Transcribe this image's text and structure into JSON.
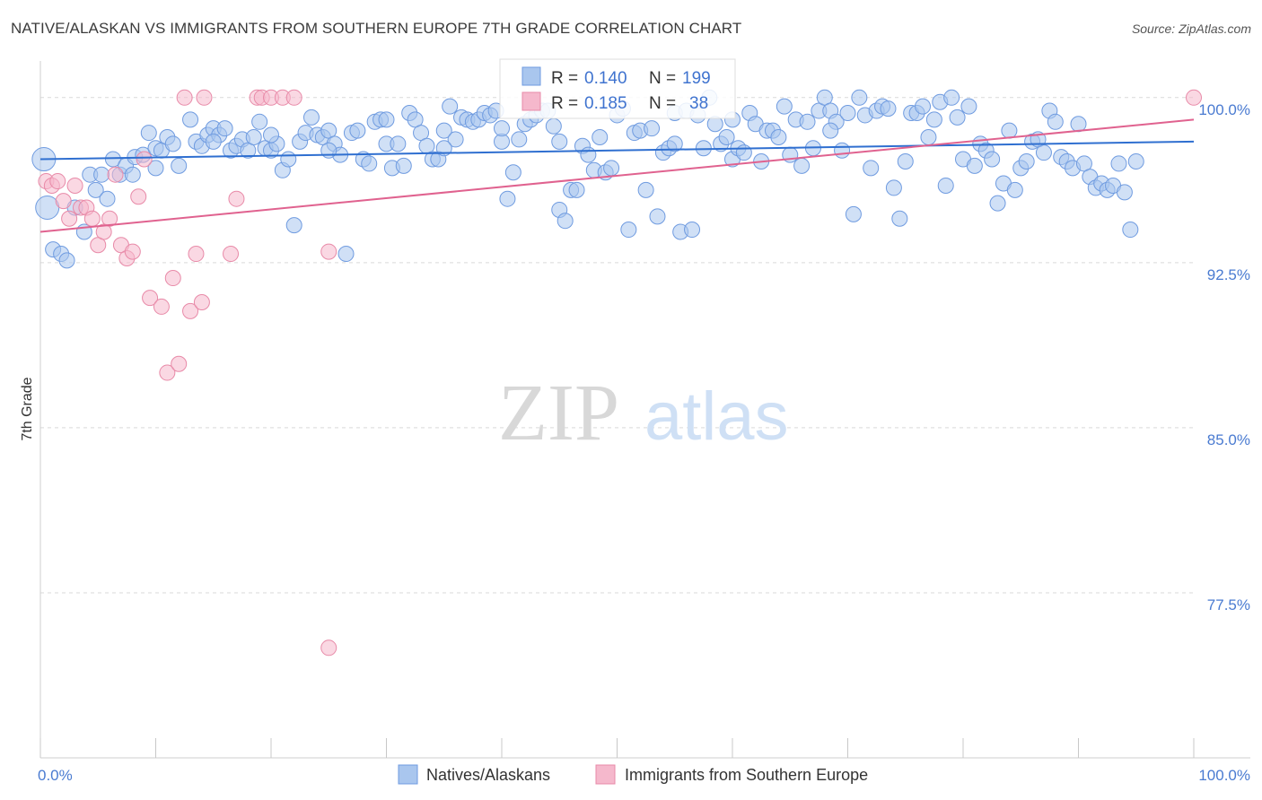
{
  "title": "NATIVE/ALASKAN VS IMMIGRANTS FROM SOUTHERN EUROPE 7TH GRADE CORRELATION CHART",
  "source": "Source: ZipAtlas.com",
  "watermark": {
    "zip": "ZIP",
    "atlas": "atlas"
  },
  "colors": {
    "blue_fill": "#a9c6ee",
    "blue_stroke": "#6f9be0",
    "blue_line": "#2f6fd0",
    "pink_fill": "#f5b8cc",
    "pink_stroke": "#e88aa8",
    "pink_line": "#e0628f",
    "axis_label": "#4a7bd1",
    "grid": "#d9d9d9"
  },
  "legend": {
    "items": [
      {
        "label": "Natives/Alaskans",
        "color": "#a9c6ee"
      },
      {
        "label": "Immigrants from Southern Europe",
        "color": "#f5b8cc"
      }
    ]
  },
  "stats": [
    {
      "r_label": "R = ",
      "r": "0.140",
      "n_label": "N = ",
      "n": "199",
      "color": "#a9c6ee"
    },
    {
      "r_label": "R = ",
      "r": "0.185",
      "n_label": "N = ",
      "n": "38",
      "color": "#f5b8cc"
    }
  ],
  "chart_data": {
    "type": "scatter",
    "ylabel": "7th Grade",
    "xlim": [
      0,
      100
    ],
    "ylim": [
      70.0,
      101.5
    ],
    "x_tick_labels": [
      "0.0%",
      "100.0%"
    ],
    "y_ticks": [
      {
        "value": 100.0,
        "label": "100.0%"
      },
      {
        "value": 92.5,
        "label": "92.5%"
      },
      {
        "value": 85.0,
        "label": "85.0%"
      },
      {
        "value": 77.5,
        "label": "77.5%"
      }
    ],
    "grid": true,
    "legend_position": "bottom",
    "series": [
      {
        "name": "Natives/Alaskans",
        "trend": {
          "x": [
            0,
            100
          ],
          "y": [
            97.2,
            98.0
          ]
        },
        "points": [
          [
            0.3,
            97.2
          ],
          [
            0.6,
            95.0
          ],
          [
            1.1,
            93.1
          ],
          [
            1.8,
            92.9
          ],
          [
            2.3,
            92.6
          ],
          [
            3.0,
            95.0
          ],
          [
            3.8,
            93.9
          ],
          [
            4.3,
            96.5
          ],
          [
            4.8,
            95.8
          ],
          [
            5.3,
            96.5
          ],
          [
            5.8,
            95.4
          ],
          [
            6.3,
            97.2
          ],
          [
            6.9,
            96.5
          ],
          [
            7.4,
            96.9
          ],
          [
            8.2,
            97.3
          ],
          [
            8.9,
            97.4
          ],
          [
            9.4,
            98.4
          ],
          [
            10.0,
            97.7
          ],
          [
            10.5,
            97.6
          ],
          [
            11.0,
            98.2
          ],
          [
            11.5,
            97.9
          ],
          [
            12.0,
            96.9
          ],
          [
            13.0,
            99.0
          ],
          [
            13.5,
            98.0
          ],
          [
            14.0,
            97.8
          ],
          [
            14.5,
            98.3
          ],
          [
            15.0,
            98.6
          ],
          [
            15.5,
            98.3
          ],
          [
            16.0,
            98.6
          ],
          [
            16.5,
            97.6
          ],
          [
            17.0,
            97.8
          ],
          [
            17.5,
            98.1
          ],
          [
            18.0,
            97.6
          ],
          [
            18.5,
            98.2
          ],
          [
            19.0,
            98.9
          ],
          [
            19.5,
            97.7
          ],
          [
            20.0,
            97.6
          ],
          [
            20.5,
            97.9
          ],
          [
            21.0,
            96.7
          ],
          [
            21.5,
            97.2
          ],
          [
            22.0,
            94.2
          ],
          [
            22.5,
            98.0
          ],
          [
            23.0,
            98.4
          ],
          [
            23.5,
            99.1
          ],
          [
            24.0,
            98.3
          ],
          [
            24.5,
            98.2
          ],
          [
            25.0,
            98.5
          ],
          [
            25.5,
            97.9
          ],
          [
            26.0,
            97.4
          ],
          [
            26.5,
            92.9
          ],
          [
            27.0,
            98.4
          ],
          [
            27.5,
            98.5
          ],
          [
            28.0,
            97.2
          ],
          [
            28.5,
            97.0
          ],
          [
            29.0,
            98.9
          ],
          [
            29.5,
            99.0
          ],
          [
            30.0,
            97.9
          ],
          [
            30.5,
            96.8
          ],
          [
            31.0,
            97.9
          ],
          [
            31.5,
            96.9
          ],
          [
            32.0,
            99.3
          ],
          [
            32.5,
            99.0
          ],
          [
            33.0,
            98.4
          ],
          [
            33.5,
            97.8
          ],
          [
            34.0,
            97.2
          ],
          [
            34.5,
            97.2
          ],
          [
            35.0,
            98.5
          ],
          [
            35.5,
            99.6
          ],
          [
            36.0,
            98.1
          ],
          [
            36.5,
            99.1
          ],
          [
            37.0,
            99.0
          ],
          [
            37.5,
            98.9
          ],
          [
            38.0,
            99.0
          ],
          [
            38.5,
            99.3
          ],
          [
            39.0,
            99.2
          ],
          [
            39.5,
            99.4
          ],
          [
            40.0,
            98.0
          ],
          [
            40.5,
            95.4
          ],
          [
            41.0,
            96.6
          ],
          [
            41.5,
            98.1
          ],
          [
            42.0,
            98.8
          ],
          [
            42.5,
            99.0
          ],
          [
            43.0,
            99.2
          ],
          [
            43.5,
            99.4
          ],
          [
            44.0,
            99.4
          ],
          [
            44.5,
            98.7
          ],
          [
            45.0,
            94.9
          ],
          [
            45.5,
            94.4
          ],
          [
            46.0,
            95.8
          ],
          [
            46.5,
            95.8
          ],
          [
            47.0,
            97.8
          ],
          [
            47.5,
            97.4
          ],
          [
            48.0,
            96.7
          ],
          [
            48.5,
            98.2
          ],
          [
            49.0,
            96.6
          ],
          [
            49.5,
            96.8
          ],
          [
            50.0,
            99.2
          ],
          [
            50.5,
            99.5
          ],
          [
            51.0,
            94.0
          ],
          [
            51.5,
            98.4
          ],
          [
            52.0,
            98.5
          ],
          [
            52.5,
            95.8
          ],
          [
            53.0,
            98.6
          ],
          [
            53.5,
            94.6
          ],
          [
            54.0,
            97.5
          ],
          [
            54.5,
            97.7
          ],
          [
            55.0,
            99.3
          ],
          [
            55.5,
            93.9
          ],
          [
            56.0,
            99.4
          ],
          [
            56.5,
            94.0
          ],
          [
            57.0,
            99.2
          ],
          [
            57.5,
            97.7
          ],
          [
            58.0,
            100.0
          ],
          [
            58.5,
            98.8
          ],
          [
            59.0,
            97.9
          ],
          [
            59.5,
            98.2
          ],
          [
            60.0,
            97.2
          ],
          [
            60.5,
            97.7
          ],
          [
            61.0,
            97.5
          ],
          [
            61.5,
            99.3
          ],
          [
            62.0,
            98.8
          ],
          [
            62.5,
            97.1
          ],
          [
            63.0,
            98.5
          ],
          [
            63.5,
            98.5
          ],
          [
            64.0,
            98.2
          ],
          [
            64.5,
            99.6
          ],
          [
            65.0,
            97.4
          ],
          [
            65.5,
            99.0
          ],
          [
            66.0,
            96.9
          ],
          [
            66.5,
            98.9
          ],
          [
            67.0,
            97.7
          ],
          [
            67.5,
            99.4
          ],
          [
            68.0,
            100.0
          ],
          [
            68.5,
            99.4
          ],
          [
            69.0,
            98.9
          ],
          [
            69.5,
            97.6
          ],
          [
            70.0,
            99.3
          ],
          [
            70.5,
            94.7
          ],
          [
            71.0,
            100.0
          ],
          [
            71.5,
            99.2
          ],
          [
            72.0,
            96.8
          ],
          [
            72.5,
            99.4
          ],
          [
            73.0,
            99.6
          ],
          [
            73.5,
            99.5
          ],
          [
            74.0,
            95.9
          ],
          [
            74.5,
            94.5
          ],
          [
            75.0,
            97.1
          ],
          [
            75.5,
            99.3
          ],
          [
            76.0,
            99.3
          ],
          [
            76.5,
            99.6
          ],
          [
            77.0,
            98.2
          ],
          [
            77.5,
            99.0
          ],
          [
            78.0,
            99.8
          ],
          [
            78.5,
            96.0
          ],
          [
            79.0,
            100.0
          ],
          [
            79.5,
            99.1
          ],
          [
            80.0,
            97.2
          ],
          [
            80.5,
            99.6
          ],
          [
            81.0,
            96.9
          ],
          [
            81.5,
            97.9
          ],
          [
            82.0,
            97.6
          ],
          [
            82.5,
            97.2
          ],
          [
            83.0,
            95.2
          ],
          [
            83.5,
            96.1
          ],
          [
            84.0,
            98.5
          ],
          [
            84.5,
            95.8
          ],
          [
            85.0,
            96.8
          ],
          [
            85.5,
            97.1
          ],
          [
            86.0,
            98.0
          ],
          [
            86.5,
            98.1
          ],
          [
            87.0,
            97.5
          ],
          [
            87.5,
            99.4
          ],
          [
            88.0,
            98.9
          ],
          [
            88.5,
            97.3
          ],
          [
            89.0,
            97.1
          ],
          [
            89.5,
            96.8
          ],
          [
            90.0,
            98.8
          ],
          [
            90.5,
            97.0
          ],
          [
            91.0,
            96.4
          ],
          [
            91.5,
            95.9
          ],
          [
            92.0,
            96.1
          ],
          [
            92.5,
            95.8
          ],
          [
            93.0,
            96.0
          ],
          [
            93.5,
            97.0
          ],
          [
            94.0,
            95.7
          ],
          [
            94.5,
            94.0
          ],
          [
            95.0,
            97.1
          ],
          [
            68.5,
            98.5
          ],
          [
            40.0,
            98.6
          ],
          [
            35.0,
            97.7
          ],
          [
            30.0,
            99.0
          ],
          [
            25.0,
            97.6
          ],
          [
            20.0,
            98.3
          ],
          [
            15.0,
            98.0
          ],
          [
            10.0,
            96.8
          ],
          [
            8.0,
            96.5
          ],
          [
            45.0,
            98.0
          ],
          [
            55.0,
            97.9
          ],
          [
            60.0,
            99.0
          ]
        ]
      },
      {
        "name": "Immigrants from Southern Europe",
        "trend": {
          "x": [
            0,
            100
          ],
          "y": [
            93.9,
            99.0
          ]
        },
        "points": [
          [
            0.5,
            96.2
          ],
          [
            1.0,
            96.0
          ],
          [
            1.5,
            96.2
          ],
          [
            2.0,
            95.3
          ],
          [
            2.5,
            94.5
          ],
          [
            3.0,
            96.0
          ],
          [
            3.5,
            95.0
          ],
          [
            4.0,
            95.0
          ],
          [
            4.5,
            94.5
          ],
          [
            5.0,
            93.3
          ],
          [
            5.5,
            93.9
          ],
          [
            6.0,
            94.5
          ],
          [
            6.5,
            96.5
          ],
          [
            7.0,
            93.3
          ],
          [
            7.5,
            92.7
          ],
          [
            8.0,
            93.0
          ],
          [
            8.5,
            95.5
          ],
          [
            9.0,
            97.2
          ],
          [
            9.5,
            90.9
          ],
          [
            10.5,
            90.5
          ],
          [
            11.0,
            87.5
          ],
          [
            11.5,
            91.8
          ],
          [
            12.0,
            87.9
          ],
          [
            12.5,
            100.0
          ],
          [
            13.0,
            90.3
          ],
          [
            13.5,
            92.9
          ],
          [
            14.0,
            90.7
          ],
          [
            14.2,
            100.0
          ],
          [
            16.5,
            92.9
          ],
          [
            17.0,
            95.4
          ],
          [
            18.8,
            100.0
          ],
          [
            19.2,
            100.0
          ],
          [
            20.0,
            100.0
          ],
          [
            21.0,
            100.0
          ],
          [
            22.0,
            100.0
          ],
          [
            25.0,
            75.0
          ],
          [
            25.0,
            93.0
          ],
          [
            100.0,
            100.0
          ]
        ]
      }
    ]
  }
}
